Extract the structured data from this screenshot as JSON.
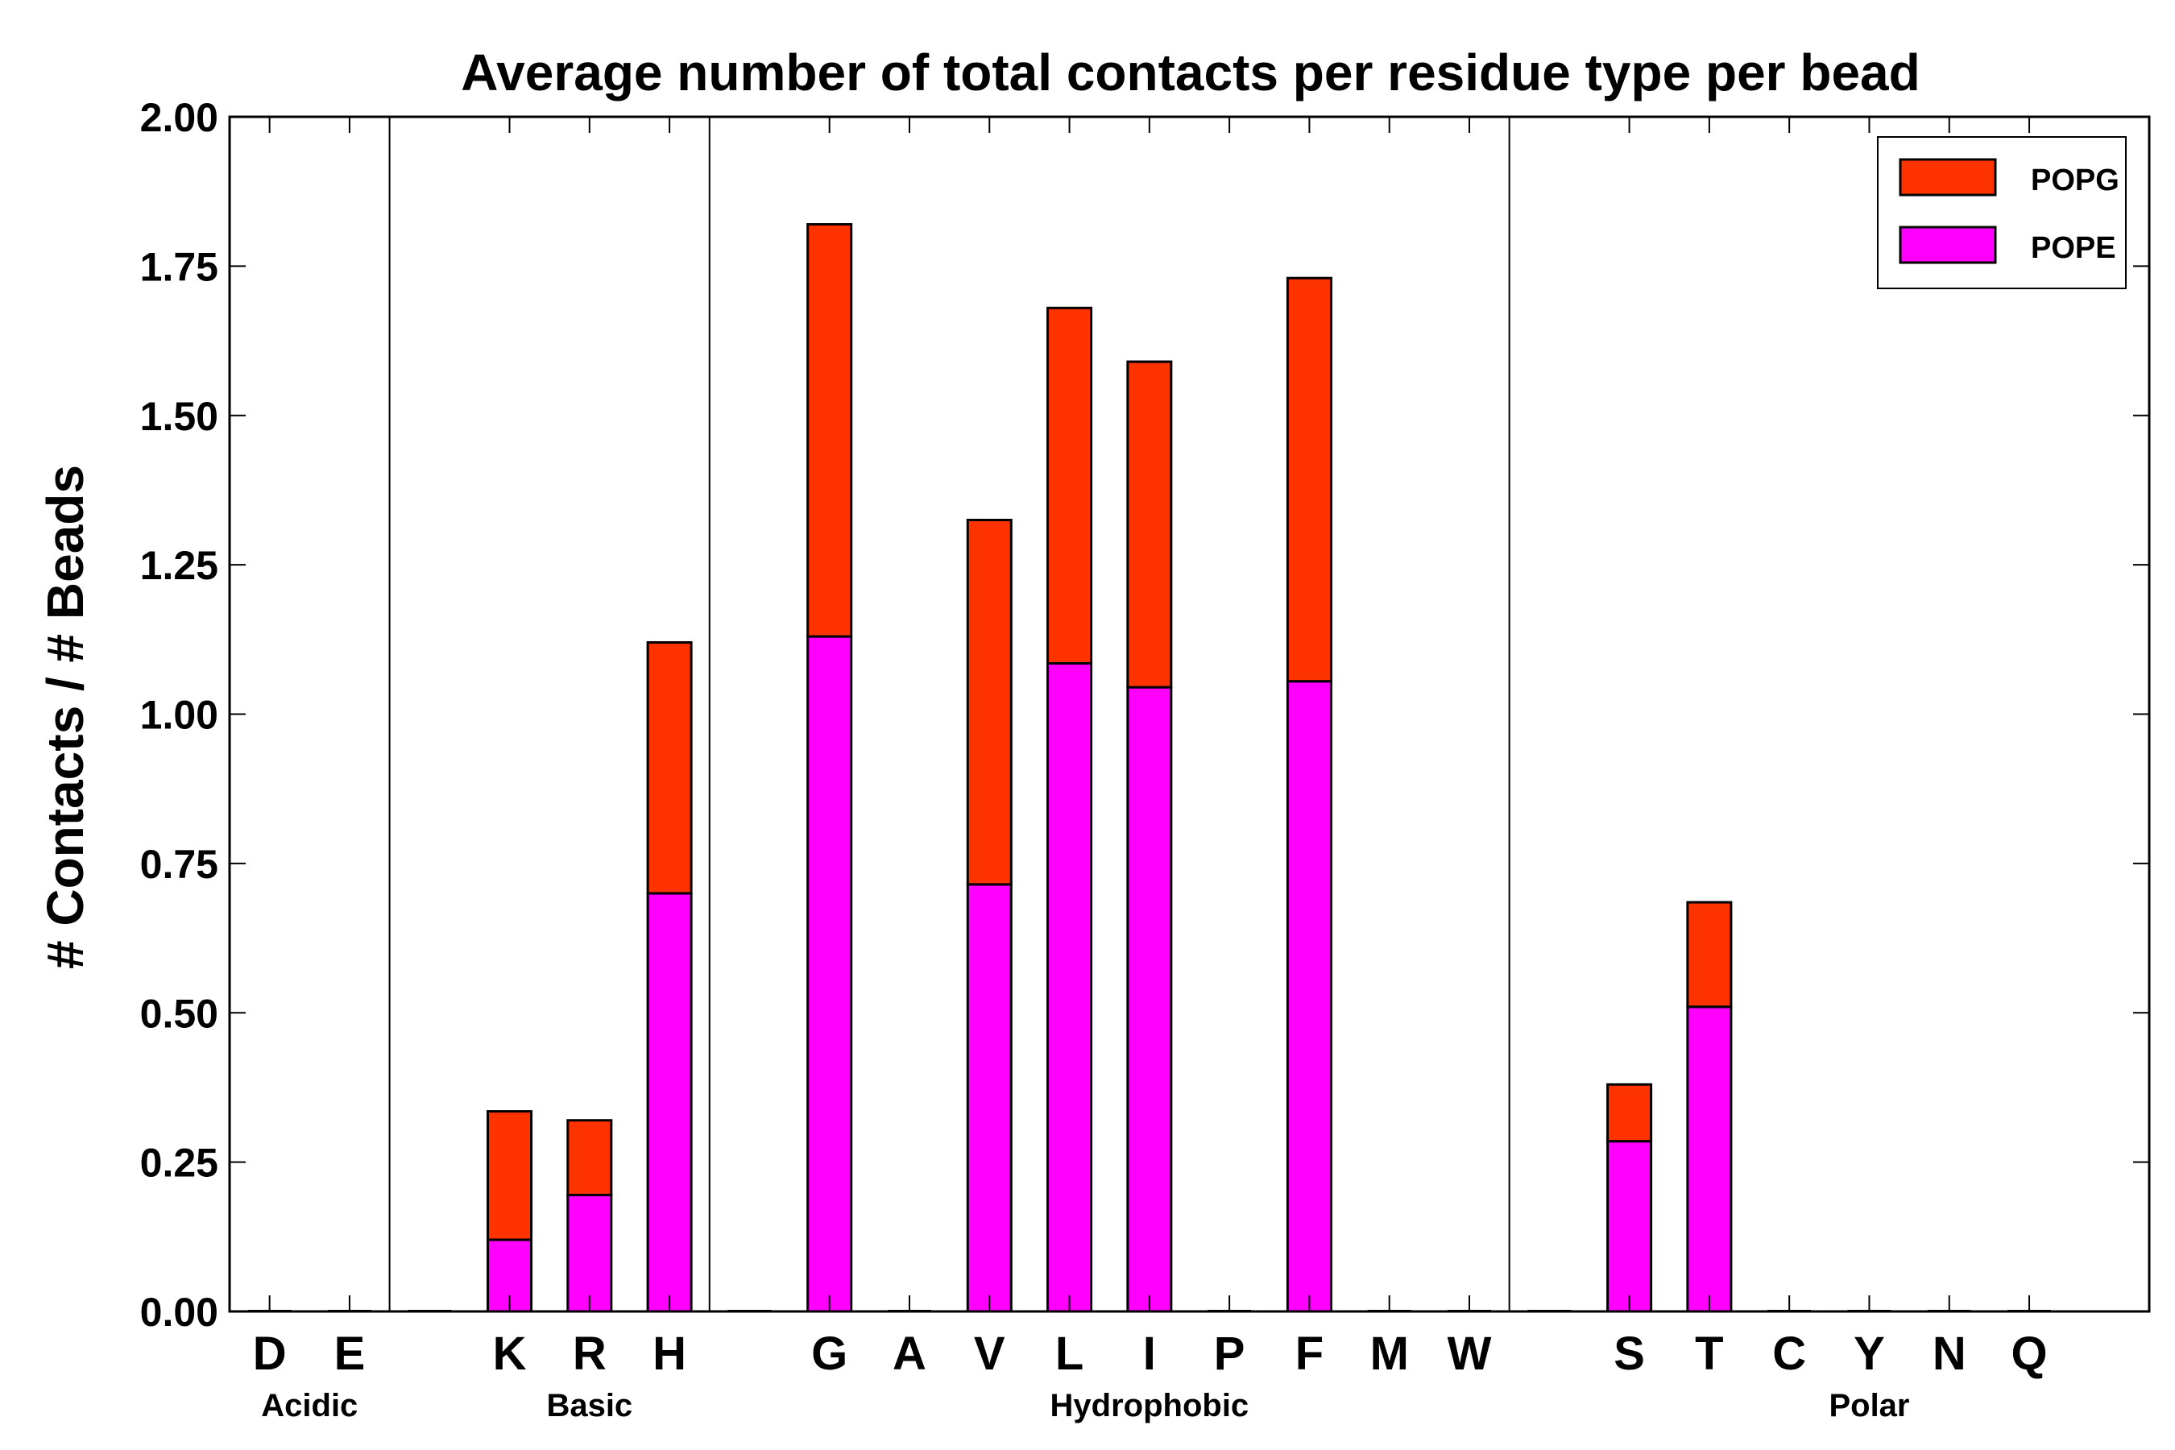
{
  "chart_data": {
    "type": "bar",
    "stacked": true,
    "title": "Average number of total contacts per residue type per bead",
    "xlabel": "",
    "ylabel": "# Contacts / # Beads",
    "ylim": [
      0,
      2.0
    ],
    "yticks": [
      "0.00",
      "0.25",
      "0.50",
      "0.75",
      "1.00",
      "1.25",
      "1.50",
      "1.75",
      "2.00"
    ],
    "slots": 24,
    "categories": [
      "D",
      "E",
      "",
      "K",
      "R",
      "H",
      "",
      "G",
      "A",
      "V",
      "L",
      "I",
      "P",
      "F",
      "M",
      "W",
      "",
      "S",
      "T",
      "C",
      "Y",
      "N",
      "Q"
    ],
    "series": [
      {
        "name": "POPE",
        "color": "#ff00ff",
        "values": [
          0,
          0,
          0,
          0.12,
          0.195,
          0.7,
          0,
          1.13,
          0,
          0.715,
          1.085,
          1.045,
          0,
          1.055,
          0,
          0,
          0,
          0.285,
          0.51,
          0,
          0,
          0,
          0
        ]
      },
      {
        "name": "POPG",
        "color": "#ff3300",
        "values": [
          0,
          0,
          0,
          0.215,
          0.125,
          0.42,
          0,
          0.69,
          0,
          0.61,
          0.595,
          0.545,
          0,
          0.675,
          0,
          0,
          0,
          0.095,
          0.175,
          0,
          0,
          0,
          0
        ]
      }
    ],
    "groups": [
      {
        "label": "Acidic",
        "center": 0.5
      },
      {
        "label": "Basic",
        "center": 4.0
      },
      {
        "label": "Hydrophobic",
        "center": 11.0
      },
      {
        "label": "Polar",
        "center": 20.0
      }
    ],
    "separators": [
      2,
      6,
      16
    ],
    "legend": {
      "position": "top-right",
      "entries": [
        "POPG",
        "POPE"
      ]
    }
  }
}
